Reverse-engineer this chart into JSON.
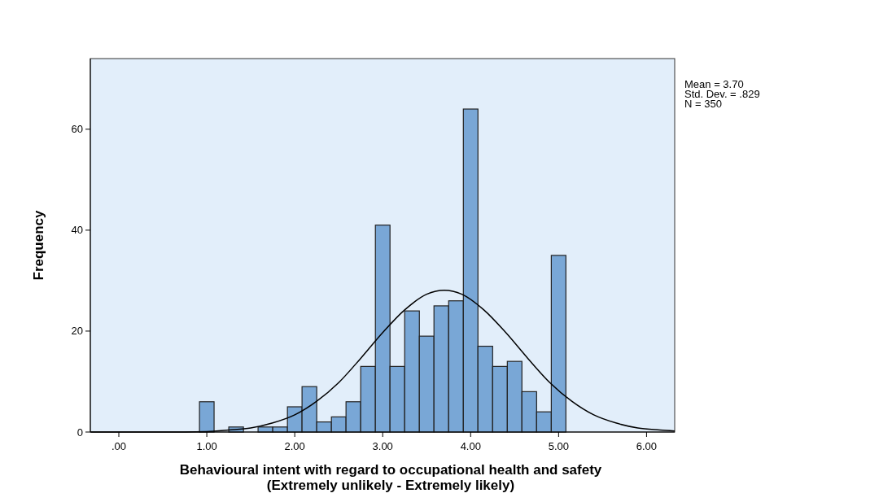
{
  "chart_data": {
    "type": "histogram",
    "xlabel": "Behavioural intent with regard to occupational health and safety (Extremely unlikely - Extremely likely)",
    "ylabel": "Frequency",
    "annotations": [
      "Mean = 3.70",
      "Std. Dev. = .829",
      "N = 350"
    ],
    "bins": [
      0.917,
      1.083,
      1.25,
      1.417,
      1.583,
      1.75,
      1.917,
      2.083,
      2.25,
      2.417,
      2.583,
      2.75,
      2.917,
      3.083,
      3.25,
      3.417,
      3.583,
      3.75,
      3.917,
      4.083,
      4.25,
      4.417,
      4.583,
      4.75,
      4.917,
      5.083
    ],
    "series": [
      {
        "color": "#79a7d6",
        "values": [
          6,
          0,
          1,
          0,
          1,
          1,
          5,
          9,
          2,
          3,
          6,
          13,
          41,
          13,
          24,
          19,
          25,
          26,
          64,
          17,
          13,
          14,
          8,
          4,
          35
        ]
      },
      {
        "type": "line",
        "color": "#000000",
        "x": [
          -0.32,
          0,
          0.5,
          1,
          1.25,
          1.5,
          1.75,
          2,
          2.25,
          2.5,
          2.75,
          3,
          3.25,
          3.5,
          3.7,
          3.9,
          4.15,
          4.4,
          4.65,
          4.9,
          5.15,
          5.4,
          5.65,
          5.9,
          6.15,
          6.32
        ],
        "values": [
          0,
          0,
          0,
          0.1,
          0.4,
          0.8,
          1.8,
          3.4,
          6.1,
          9.8,
          14.6,
          19.7,
          24.2,
          27.3,
          28.1,
          27.3,
          24.2,
          19.7,
          14.6,
          9.8,
          6.1,
          3.4,
          1.8,
          0.8,
          0.4,
          0.2
        ]
      }
    ],
    "xlim": [
      -0.324,
      6.32
    ],
    "ylim": [
      0,
      74
    ],
    "xticks": [
      {
        "value": 0,
        "label": ".00"
      },
      {
        "value": 1,
        "label": "1.00"
      },
      {
        "value": 2,
        "label": "2.00"
      },
      {
        "value": 3,
        "label": "3.00"
      },
      {
        "value": 4,
        "label": "4.00"
      },
      {
        "value": 5,
        "label": "5.00"
      },
      {
        "value": 6,
        "label": "6.00"
      }
    ],
    "yticks": [
      0,
      20,
      40,
      60
    ],
    "grid": false
  }
}
